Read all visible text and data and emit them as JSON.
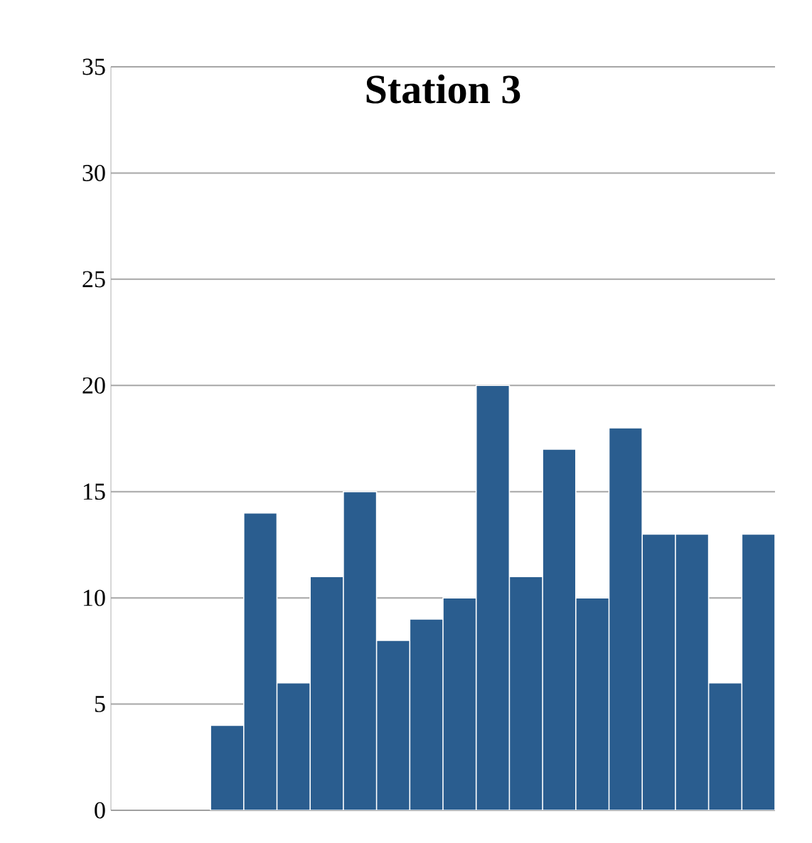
{
  "chart_data": {
    "type": "bar",
    "title": "Station 3",
    "categories": [
      null,
      null,
      null,
      null,
      null,
      null,
      null,
      null,
      null,
      null,
      null,
      null,
      null,
      null,
      null,
      null,
      null,
      null,
      null,
      null
    ],
    "values": [
      null,
      null,
      null,
      4,
      14,
      6,
      11,
      15,
      8,
      9,
      10,
      20,
      11,
      17,
      10,
      18,
      13,
      13,
      6,
      13
    ],
    "color": "#2a5d8f",
    "ylim": [
      0,
      35
    ],
    "yticks": [
      0,
      5,
      10,
      15,
      20,
      25,
      30,
      35
    ],
    "grid": "y",
    "tick_labels": "y"
  }
}
